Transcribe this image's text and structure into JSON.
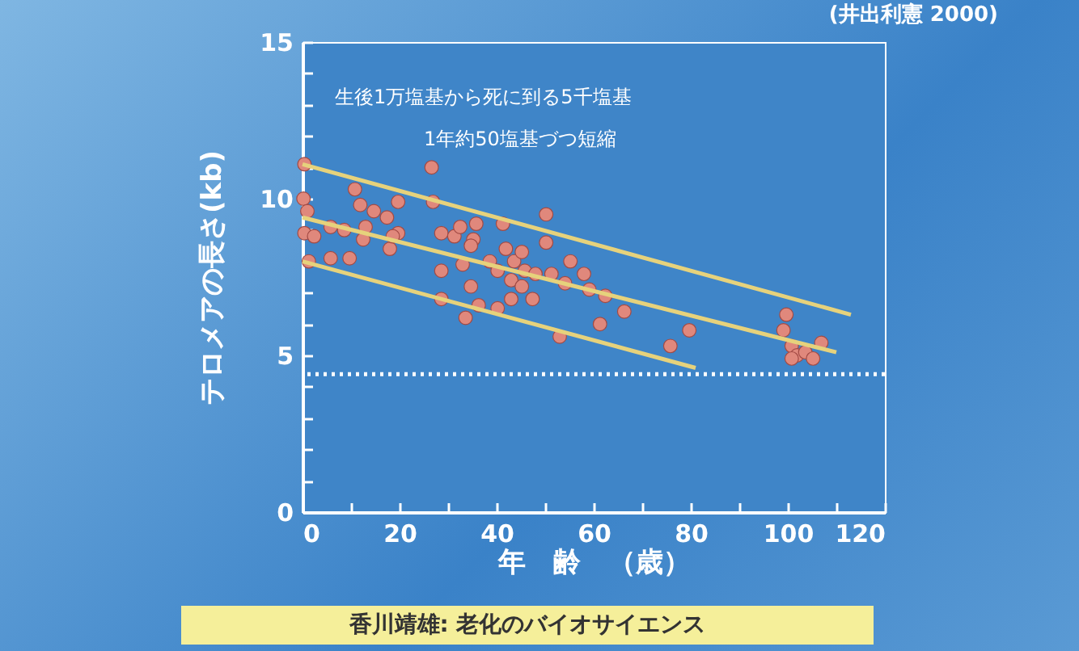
{
  "chart_data": {
    "type": "scatter",
    "xlabel": "年　齢　（歳）",
    "ylabel": "テロメアの長さ(kb)",
    "annotations": [
      "(井出利憲 2000)",
      "生後1万塩基から死に到る5千塩基",
      "1年約50塩基づつ短縮",
      "香川靖雄: 老化のバイオサイエンス"
    ],
    "xlim": [
      0,
      120
    ],
    "ylim": [
      0,
      15
    ],
    "xticks": [
      0,
      {
        "value": 10,
        "label": null
      },
      20,
      {
        "value": 30,
        "label": null
      },
      40,
      {
        "value": 50,
        "label": null
      },
      60,
      {
        "value": 70,
        "label": null
      },
      80,
      {
        "value": 90,
        "label": null
      },
      100,
      {
        "value": 110,
        "label": null
      },
      120
    ],
    "yticks": [
      0,
      {
        "value": 1,
        "label": null
      },
      {
        "value": 2,
        "label": null
      },
      {
        "value": 3,
        "label": null
      },
      {
        "value": 4,
        "label": null
      },
      5,
      {
        "value": 6,
        "label": null
      },
      {
        "value": 7,
        "label": null
      },
      {
        "value": 8,
        "label": null
      },
      {
        "value": 9,
        "label": null
      },
      10,
      {
        "value": 11,
        "label": null
      },
      {
        "value": 12,
        "label": null
      },
      {
        "value": 13,
        "label": null
      },
      {
        "value": 14,
        "label": null
      },
      15
    ],
    "grid": false,
    "marker": "circle",
    "series": [
      {
        "type": "scatter",
        "color": "#e0887c",
        "x": [
          0.4,
          26.6,
          0.2,
          1,
          0.4,
          2.4,
          1.3,
          10.8,
          11.9,
          14.7,
          19.7,
          17.4,
          13,
          8.6,
          5.8,
          12.5,
          5.8,
          9.7,
          18,
          19.7,
          18.6,
          26.9,
          28.6,
          31.3,
          32.5,
          35.8,
          35.2,
          34.7,
          41.3,
          50.2,
          50.2,
          28.6,
          33,
          34.7,
          28.6,
          33.6,
          36.3,
          38.6,
          40.2,
          41.9,
          43,
          43.6,
          45.2,
          45.8,
          48,
          47.4,
          43,
          40.2,
          45.2,
          51.3,
          54.1,
          55.2,
          58,
          59.1,
          62.4,
          66.3,
          61.3,
          53,
          75.8,
          79.7,
          99.7,
          99.1,
          100.8,
          101.9,
          103.6,
          106.9,
          105.2,
          100.8
        ],
        "values": [
          11.1,
          11.0,
          10.0,
          9.6,
          8.9,
          8.8,
          8.0,
          10.3,
          9.8,
          9.6,
          9.9,
          9.4,
          9.1,
          9.0,
          9.1,
          8.7,
          8.1,
          8.1,
          8.4,
          8.9,
          8.8,
          9.9,
          8.9,
          8.8,
          9.1,
          9.2,
          8.7,
          8.5,
          9.2,
          9.5,
          8.6,
          7.7,
          7.9,
          7.2,
          6.8,
          6.2,
          6.6,
          8.0,
          7.7,
          8.4,
          7.4,
          8.0,
          8.3,
          7.7,
          7.6,
          6.8,
          6.8,
          6.5,
          7.2,
          7.6,
          7.3,
          8.0,
          7.6,
          7.1,
          6.9,
          6.4,
          6.0,
          5.6,
          5.3,
          5.8,
          6.3,
          5.8,
          5.3,
          5.0,
          5.1,
          5.4,
          4.9,
          4.9
        ]
      },
      {
        "type": "line",
        "marker": "none",
        "color": "#e6d27c",
        "x": [
          0,
          113
        ],
        "values": [
          11.1,
          6.3
        ]
      },
      {
        "type": "line",
        "marker": "none",
        "color": "#e6d27c",
        "x": [
          0,
          110
        ],
        "values": [
          9.4,
          5.1
        ]
      },
      {
        "type": "line",
        "marker": "none",
        "color": "#e6d27c",
        "x": [
          0,
          81
        ],
        "values": [
          8.0,
          4.6
        ]
      }
    ],
    "ref_lines": [
      {
        "axis": "y",
        "value": 4.4,
        "color": "#ffffff",
        "line_style": "dotted"
      }
    ]
  }
}
